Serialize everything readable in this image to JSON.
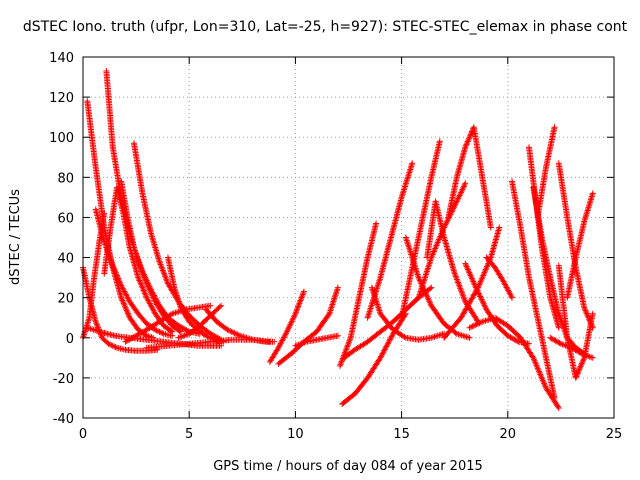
{
  "chart_data": {
    "type": "scatter",
    "title": "dSTEC Iono. truth (ufpr, Lon=310, Lat=-25, h=927): STEC-STEC_elemax in phase cont",
    "xlabel": "GPS time / hours of day 084 of year 2015",
    "ylabel": "dSTEC  / TECUs",
    "xlim": [
      0,
      25
    ],
    "ylim": [
      -40,
      140
    ],
    "xticks": [
      0,
      5,
      10,
      15,
      20,
      25
    ],
    "yticks": [
      -40,
      -20,
      0,
      20,
      40,
      60,
      80,
      100,
      120,
      140
    ],
    "xtick_labels": [
      "0",
      "5",
      "10",
      "15",
      "20",
      "25"
    ],
    "ytick_labels": [
      "-40",
      "-20",
      "0",
      "20",
      "40",
      "60",
      "80",
      "100",
      "120",
      "140"
    ],
    "grid": true,
    "legend": "none",
    "marker": "plus",
    "color": "#ff0000",
    "series": [
      {
        "x": [
          0.0,
          0.3,
          0.6,
          0.9,
          1.2,
          1.6,
          2.0,
          2.5,
          3.0,
          3.5
        ],
        "y": [
          35,
          20,
          8,
          0,
          -3,
          -5,
          -6,
          -6.5,
          -6.5,
          -6
        ]
      },
      {
        "x": [
          0.2,
          0.6,
          1.0,
          1.4,
          1.8,
          2.2,
          2.6,
          3.0,
          3.3
        ],
        "y": [
          118,
          85,
          55,
          35,
          20,
          10,
          4,
          1,
          0
        ]
      },
      {
        "x": [
          0.0,
          0.3,
          0.5,
          0.8,
          1.0
        ],
        "y": [
          0,
          10,
          28,
          50,
          62
        ]
      },
      {
        "x": [
          0.6,
          1.0,
          1.4,
          1.8,
          2.2,
          2.6,
          3.0,
          3.4,
          3.8,
          4.2
        ],
        "y": [
          64,
          48,
          36,
          26,
          18,
          12,
          7,
          4,
          2,
          1
        ]
      },
      {
        "x": [
          1.1,
          1.4,
          1.8,
          2.2,
          2.6,
          3.0,
          3.4,
          3.8,
          4.2,
          4.6
        ],
        "y": [
          133,
          95,
          70,
          52,
          38,
          27,
          18,
          11,
          6,
          3
        ]
      },
      {
        "x": [
          1.0,
          1.3,
          1.6,
          1.9,
          2.2,
          2.6,
          3.0,
          3.4,
          3.8,
          4.2
        ],
        "y": [
          32,
          55,
          75,
          62,
          45,
          30,
          20,
          12,
          6,
          3
        ]
      },
      {
        "x": [
          1.8,
          2.1,
          2.4,
          2.8,
          3.2,
          3.6,
          4.0,
          4.5,
          5.0,
          5.5
        ],
        "y": [
          78,
          60,
          45,
          33,
          24,
          16,
          10,
          6,
          3,
          2
        ]
      },
      {
        "x": [
          2.4,
          2.8,
          3.2,
          3.6,
          4.0,
          4.5,
          5.0,
          5.5,
          6.0,
          6.5
        ],
        "y": [
          97,
          72,
          52,
          38,
          27,
          18,
          11,
          6,
          2,
          -1
        ]
      },
      {
        "x": [
          4.0,
          4.3,
          4.6,
          5.0,
          5.4,
          5.8,
          6.2,
          6.6
        ],
        "y": [
          40,
          25,
          15,
          8,
          4,
          1,
          -1,
          -2
        ]
      },
      {
        "x": [
          0.2,
          0.8,
          1.5,
          2.2,
          3.0,
          3.8,
          4.6,
          5.4,
          6.0,
          6.5
        ],
        "y": [
          5,
          3,
          1,
          0,
          -1,
          -2,
          -3,
          -4,
          -4,
          -4
        ]
      },
      {
        "x": [
          2.0,
          2.5,
          3.0,
          3.6,
          4.2,
          4.8,
          5.4,
          6.0
        ],
        "y": [
          -2,
          1,
          4,
          8,
          12,
          14,
          15,
          16
        ]
      },
      {
        "x": [
          4.5,
          5.0,
          5.4,
          5.8,
          6.2,
          6.5
        ],
        "y": [
          0,
          2,
          5,
          9,
          13,
          16
        ]
      },
      {
        "x": [
          5.8,
          6.3,
          6.8,
          7.4,
          8.0,
          8.6,
          9.0
        ],
        "y": [
          14,
          8,
          4,
          1,
          -1,
          -2,
          -2
        ]
      },
      {
        "x": [
          3.0,
          4.0,
          5.0,
          6.0,
          7.0,
          8.0,
          8.8
        ],
        "y": [
          -5,
          -4,
          -3,
          -2,
          -1,
          -1,
          -2
        ]
      },
      {
        "x": [
          8.8,
          9.2,
          9.6,
          10.0,
          10.4
        ],
        "y": [
          -12,
          -5,
          3,
          12,
          23
        ]
      },
      {
        "x": [
          9.2,
          9.8,
          10.4,
          11.0,
          11.6,
          12.0
        ],
        "y": [
          -13,
          -8,
          -2,
          3,
          12,
          25
        ]
      },
      {
        "x": [
          10.0,
          10.5,
          11.0,
          11.5,
          12.0
        ],
        "y": [
          -4,
          -2,
          -1,
          0,
          1
        ]
      },
      {
        "x": [
          12.1,
          12.6,
          13.0,
          13.4,
          13.8
        ],
        "y": [
          -14,
          0,
          20,
          40,
          57
        ]
      },
      {
        "x": [
          12.2,
          12.8,
          13.4,
          14.0,
          14.6,
          15.2
        ],
        "y": [
          -33,
          -28,
          -20,
          -10,
          2,
          12
        ]
      },
      {
        "x": [
          12.3,
          12.8,
          13.4,
          14.0,
          14.6,
          15.2,
          15.8,
          16.4
        ],
        "y": [
          -10,
          -6,
          -2,
          3,
          8,
          14,
          20,
          25
        ]
      },
      {
        "x": [
          13.4,
          14.0,
          14.5,
          15.0,
          15.5
        ],
        "y": [
          10,
          30,
          50,
          70,
          87
        ]
      },
      {
        "x": [
          13.6,
          14.0,
          14.6,
          15.2,
          15.8,
          16.4,
          17.0
        ],
        "y": [
          25,
          12,
          4,
          0,
          -1,
          0,
          2
        ]
      },
      {
        "x": [
          15.0,
          15.5,
          16.0,
          16.4,
          16.8
        ],
        "y": [
          10,
          35,
          60,
          80,
          98
        ]
      },
      {
        "x": [
          15.2,
          15.8,
          16.4,
          17.0,
          17.6,
          18.2
        ],
        "y": [
          50,
          30,
          16,
          7,
          2,
          0
        ]
      },
      {
        "x": [
          15.8,
          16.4,
          17.0,
          17.6,
          18.0
        ],
        "y": [
          20,
          40,
          55,
          68,
          77
        ]
      },
      {
        "x": [
          16.2,
          16.6,
          17.0,
          17.5,
          18.0,
          18.6
        ],
        "y": [
          40,
          68,
          50,
          32,
          18,
          8
        ]
      },
      {
        "x": [
          17.2,
          17.6,
          18.0,
          18.4,
          18.8,
          19.2
        ],
        "y": [
          60,
          80,
          95,
          105,
          80,
          55
        ]
      },
      {
        "x": [
          18.0,
          18.5,
          19.0,
          19.5,
          20.0,
          20.5,
          21.0
        ],
        "y": [
          37,
          25,
          14,
          6,
          1,
          -2,
          -3
        ]
      },
      {
        "x": [
          18.2,
          18.8,
          19.4,
          20.0,
          20.6,
          21.2,
          21.8,
          22.4
        ],
        "y": [
          5,
          8,
          10,
          6,
          0,
          -10,
          -25,
          -35
        ]
      },
      {
        "x": [
          17.0,
          17.8,
          18.6,
          19.2,
          19.6
        ],
        "y": [
          0,
          10,
          25,
          40,
          55
        ]
      },
      {
        "x": [
          19.0,
          19.4,
          19.8,
          20.2
        ],
        "y": [
          40,
          35,
          28,
          20
        ]
      },
      {
        "x": [
          20.2,
          20.6,
          21.0,
          21.4,
          21.8,
          22.2
        ],
        "y": [
          78,
          55,
          30,
          10,
          -10,
          -30
        ]
      },
      {
        "x": [
          21.0,
          21.3,
          21.6,
          22.0,
          22.4
        ],
        "y": [
          95,
          70,
          45,
          20,
          5
        ]
      },
      {
        "x": [
          21.4,
          21.8,
          22.2
        ],
        "y": [
          60,
          85,
          105
        ]
      },
      {
        "x": [
          21.2,
          21.6,
          22.0,
          22.4,
          22.8,
          23.2,
          23.6
        ],
        "y": [
          75,
          50,
          30,
          12,
          0,
          -5,
          -8
        ]
      },
      {
        "x": [
          22.4,
          22.8,
          23.2,
          23.6,
          24.0
        ],
        "y": [
          87,
          60,
          35,
          15,
          5
        ]
      },
      {
        "x": [
          22.4,
          22.8,
          23.2,
          23.6,
          24.0
        ],
        "y": [
          36,
          0,
          -20,
          -10,
          12
        ]
      },
      {
        "x": [
          22.8,
          23.2,
          23.6,
          24.0
        ],
        "y": [
          20,
          40,
          58,
          72
        ]
      },
      {
        "x": [
          22.0,
          22.5,
          23.0,
          23.5,
          24.0
        ],
        "y": [
          0,
          -3,
          -5,
          -8,
          -10
        ]
      }
    ]
  }
}
